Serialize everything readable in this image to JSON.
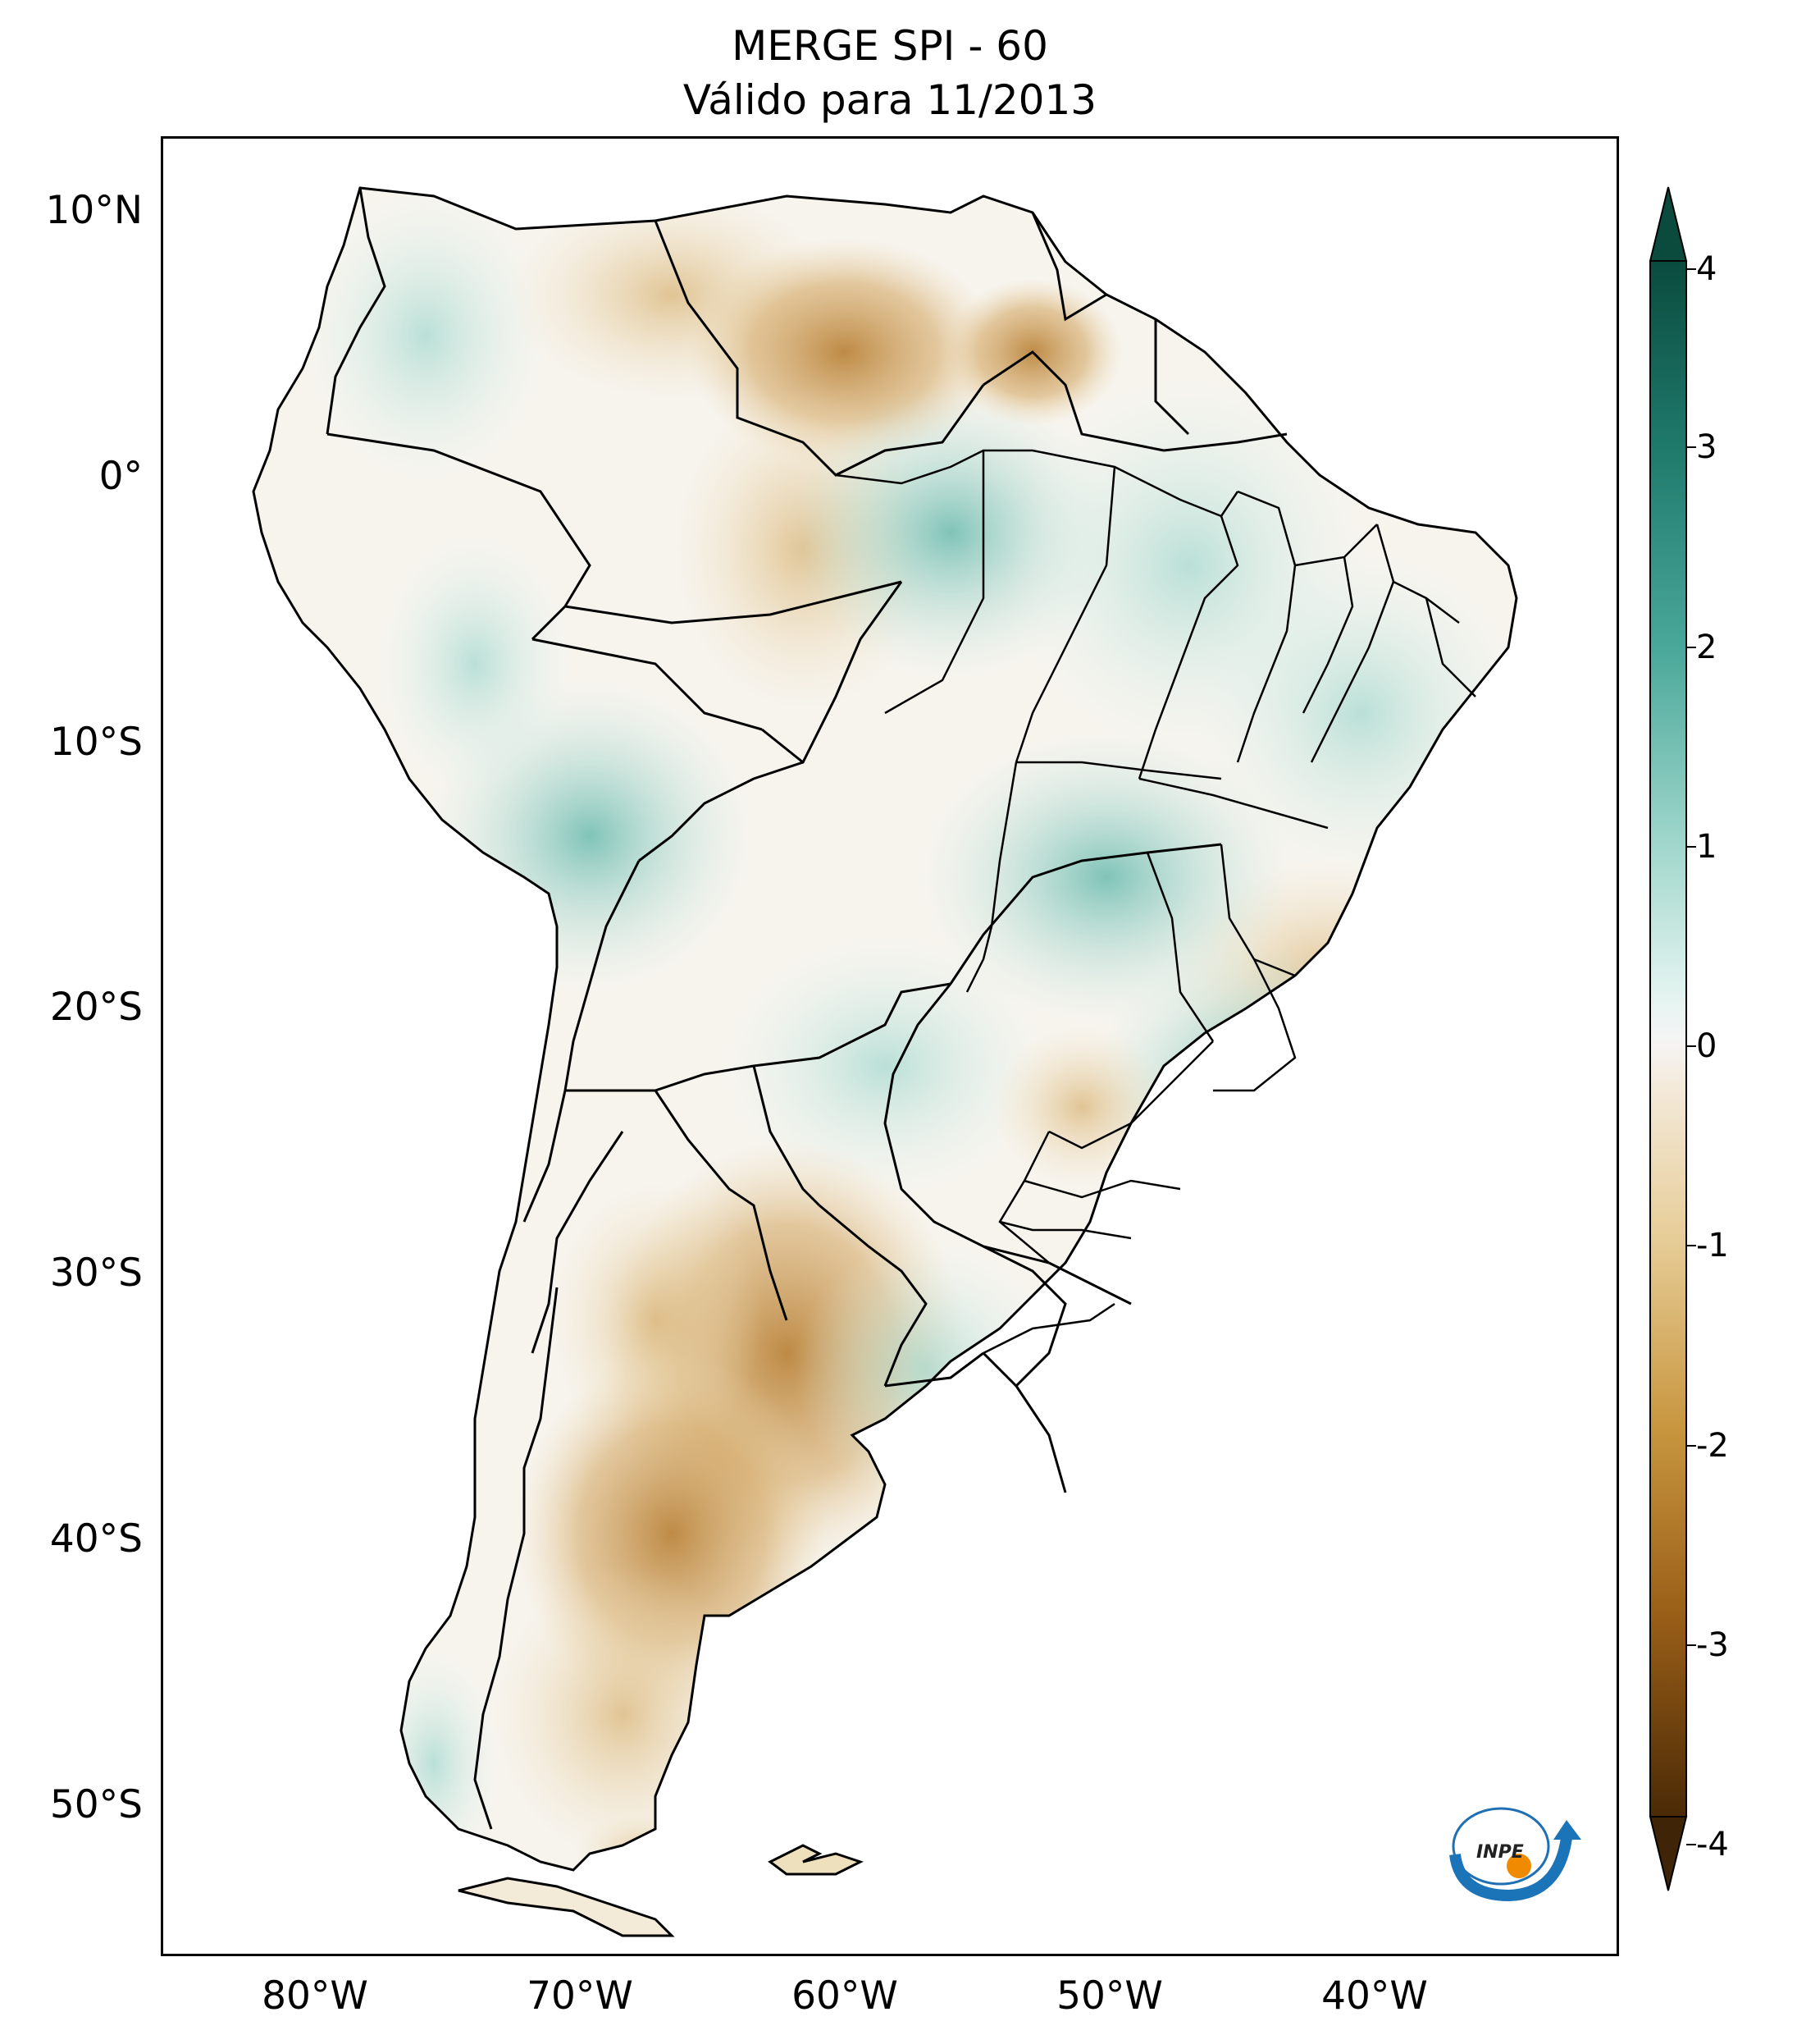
{
  "title": {
    "line1": "MERGE   SPI - 60",
    "line2": "Válido para 11/2013"
  },
  "axes": {
    "lon_ticks": [
      "80°W",
      "70°W",
      "60°W",
      "50°W",
      "40°W"
    ],
    "lat_ticks": [
      "10°N",
      "0°",
      "10°S",
      "20°S",
      "30°S",
      "40°S",
      "50°S"
    ],
    "lon_range": [
      -85,
      -30
    ],
    "lat_range": [
      -57,
      13
    ]
  },
  "colorbar": {
    "ticks": [
      "4",
      "3",
      "2",
      "1",
      "0",
      "-1",
      "-2",
      "-3",
      "-4"
    ],
    "range": [
      -4,
      4
    ],
    "extend": "both",
    "colormap": "BrBG",
    "colors": {
      "dry_extreme": "#3f2408",
      "dry": "#b97a2c",
      "neutral": "#f5f5f5",
      "wet": "#7fcdc1",
      "wet_extreme": "#0a4b3e"
    }
  },
  "logo": {
    "text": "INPE"
  }
}
